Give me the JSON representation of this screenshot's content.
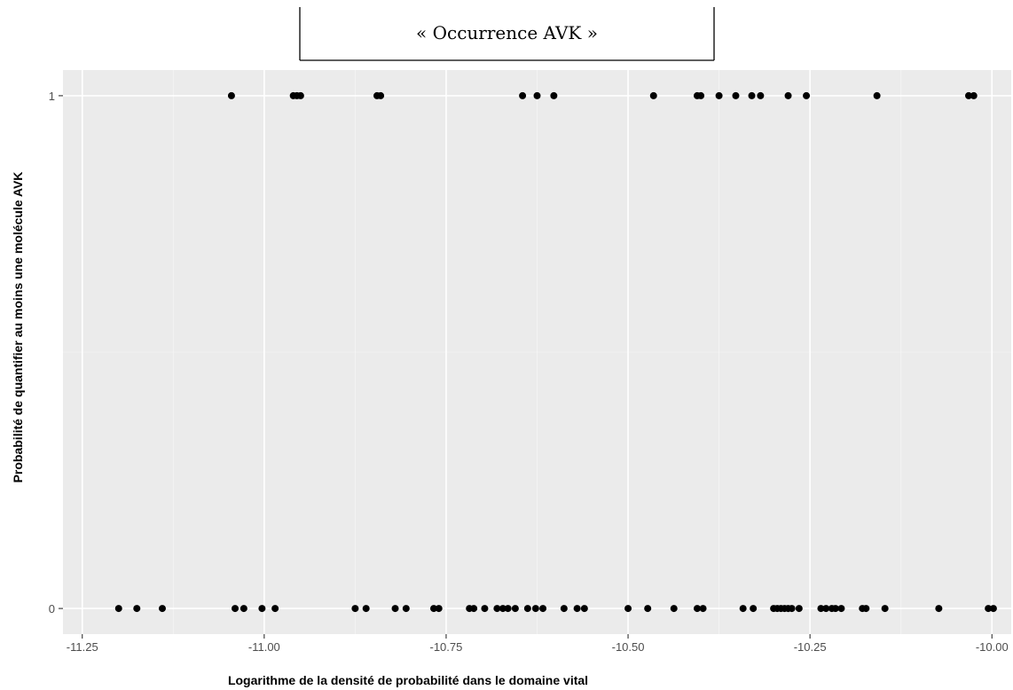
{
  "chart_data": {
    "type": "scatter",
    "title": "« Occurrence AVK »",
    "xlabel": "Logarithme de la densité de probabilité dans le domaine vital",
    "ylabel": "Probabilité de quantifier au moins une molécule AVK",
    "xlim": [
      -11.25,
      -10.0
    ],
    "ylim": [
      0,
      1
    ],
    "x_ticks": [
      -11.25,
      -11.0,
      -10.75,
      -10.5,
      -10.25,
      -10.0
    ],
    "x_tick_labels": [
      "-11.25",
      "-11.00",
      "-10.75",
      "-10.50",
      "-10.25",
      "-10.00"
    ],
    "y_ticks": [
      0,
      1
    ],
    "y_tick_labels": [
      "0",
      "1"
    ],
    "grid": true,
    "background": "#ebebeb",
    "point_color": "#000000",
    "series": [
      {
        "values": [
          {
            "x": -11.045,
            "y": 1
          },
          {
            "x": -10.96,
            "y": 1
          },
          {
            "x": -10.955,
            "y": 1
          },
          {
            "x": -10.95,
            "y": 1
          },
          {
            "x": -10.845,
            "y": 1
          },
          {
            "x": -10.84,
            "y": 1
          },
          {
            "x": -10.645,
            "y": 1
          },
          {
            "x": -10.625,
            "y": 1
          },
          {
            "x": -10.602,
            "y": 1
          },
          {
            "x": -10.465,
            "y": 1
          },
          {
            "x": -10.405,
            "y": 1
          },
          {
            "x": -10.4,
            "y": 1
          },
          {
            "x": -10.375,
            "y": 1
          },
          {
            "x": -10.352,
            "y": 1
          },
          {
            "x": -10.33,
            "y": 1
          },
          {
            "x": -10.318,
            "y": 1
          },
          {
            "x": -10.28,
            "y": 1
          },
          {
            "x": -10.255,
            "y": 1
          },
          {
            "x": -10.158,
            "y": 1
          },
          {
            "x": -10.032,
            "y": 1
          },
          {
            "x": -10.025,
            "y": 1
          },
          {
            "x": -11.2,
            "y": 0
          },
          {
            "x": -11.175,
            "y": 0
          },
          {
            "x": -11.14,
            "y": 0
          },
          {
            "x": -11.04,
            "y": 0
          },
          {
            "x": -11.028,
            "y": 0
          },
          {
            "x": -11.003,
            "y": 0
          },
          {
            "x": -10.985,
            "y": 0
          },
          {
            "x": -10.875,
            "y": 0
          },
          {
            "x": -10.86,
            "y": 0
          },
          {
            "x": -10.82,
            "y": 0
          },
          {
            "x": -10.805,
            "y": 0
          },
          {
            "x": -10.767,
            "y": 0
          },
          {
            "x": -10.76,
            "y": 0
          },
          {
            "x": -10.718,
            "y": 0
          },
          {
            "x": -10.712,
            "y": 0
          },
          {
            "x": -10.697,
            "y": 0
          },
          {
            "x": -10.68,
            "y": 0
          },
          {
            "x": -10.672,
            "y": 0
          },
          {
            "x": -10.665,
            "y": 0
          },
          {
            "x": -10.655,
            "y": 0
          },
          {
            "x": -10.638,
            "y": 0
          },
          {
            "x": -10.627,
            "y": 0
          },
          {
            "x": -10.617,
            "y": 0
          },
          {
            "x": -10.588,
            "y": 0
          },
          {
            "x": -10.57,
            "y": 0
          },
          {
            "x": -10.56,
            "y": 0
          },
          {
            "x": -10.5,
            "y": 0
          },
          {
            "x": -10.473,
            "y": 0
          },
          {
            "x": -10.437,
            "y": 0
          },
          {
            "x": -10.405,
            "y": 0
          },
          {
            "x": -10.397,
            "y": 0
          },
          {
            "x": -10.342,
            "y": 0
          },
          {
            "x": -10.328,
            "y": 0
          },
          {
            "x": -10.3,
            "y": 0
          },
          {
            "x": -10.295,
            "y": 0
          },
          {
            "x": -10.29,
            "y": 0
          },
          {
            "x": -10.285,
            "y": 0
          },
          {
            "x": -10.28,
            "y": 0
          },
          {
            "x": -10.275,
            "y": 0
          },
          {
            "x": -10.265,
            "y": 0
          },
          {
            "x": -10.235,
            "y": 0
          },
          {
            "x": -10.228,
            "y": 0
          },
          {
            "x": -10.22,
            "y": 0
          },
          {
            "x": -10.215,
            "y": 0
          },
          {
            "x": -10.207,
            "y": 0
          },
          {
            "x": -10.178,
            "y": 0
          },
          {
            "x": -10.173,
            "y": 0
          },
          {
            "x": -10.147,
            "y": 0
          },
          {
            "x": -10.073,
            "y": 0
          },
          {
            "x": -10.005,
            "y": 0
          },
          {
            "x": -9.998,
            "y": 0
          }
        ]
      }
    ]
  }
}
